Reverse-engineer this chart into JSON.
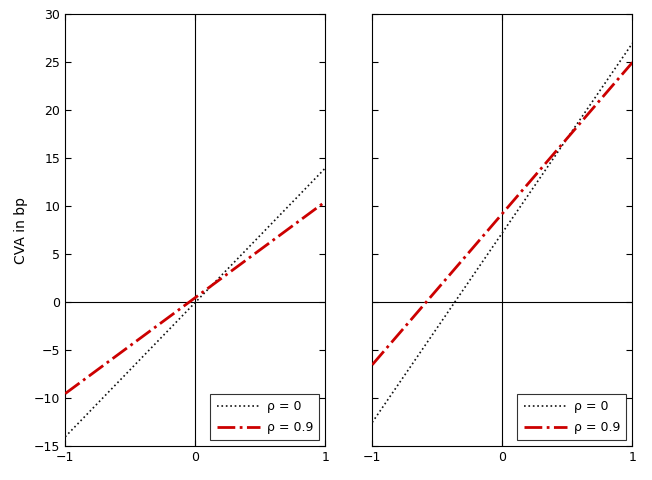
{
  "ylabel": "CVA in bp",
  "xlim": [
    -1,
    1
  ],
  "ylim": [
    -15,
    30
  ],
  "yticks": [
    -15,
    -10,
    -5,
    0,
    5,
    10,
    15,
    20,
    25,
    30
  ],
  "xticks": [
    -1,
    0,
    1
  ],
  "left_plot": {
    "rho0": {
      "x": [
        -1,
        1
      ],
      "y": [
        -14.0,
        14.0
      ],
      "color": "#111111",
      "linestyle": "dotted",
      "linewidth": 1.2,
      "label": "ρ = 0"
    },
    "rho09": {
      "x": [
        -1,
        1
      ],
      "y": [
        -9.5,
        10.5
      ],
      "color": "#cc0000",
      "linestyle": "dashdot",
      "linewidth": 2.0,
      "label": "ρ = 0.9"
    }
  },
  "right_plot": {
    "rho0": {
      "x": [
        -1,
        1
      ],
      "y": [
        -12.5,
        27.0
      ],
      "color": "#111111",
      "linestyle": "dotted",
      "linewidth": 1.2,
      "label": "ρ = 0"
    },
    "rho09": {
      "x": [
        -1,
        1
      ],
      "y": [
        -6.5,
        25.0
      ],
      "color": "#cc0000",
      "linestyle": "dashdot",
      "linewidth": 2.0,
      "label": "ρ = 0.9"
    }
  },
  "legend_loc": "lower right",
  "background_color": "#ffffff",
  "fig_width": 6.52,
  "fig_height": 4.8,
  "dpi": 100
}
